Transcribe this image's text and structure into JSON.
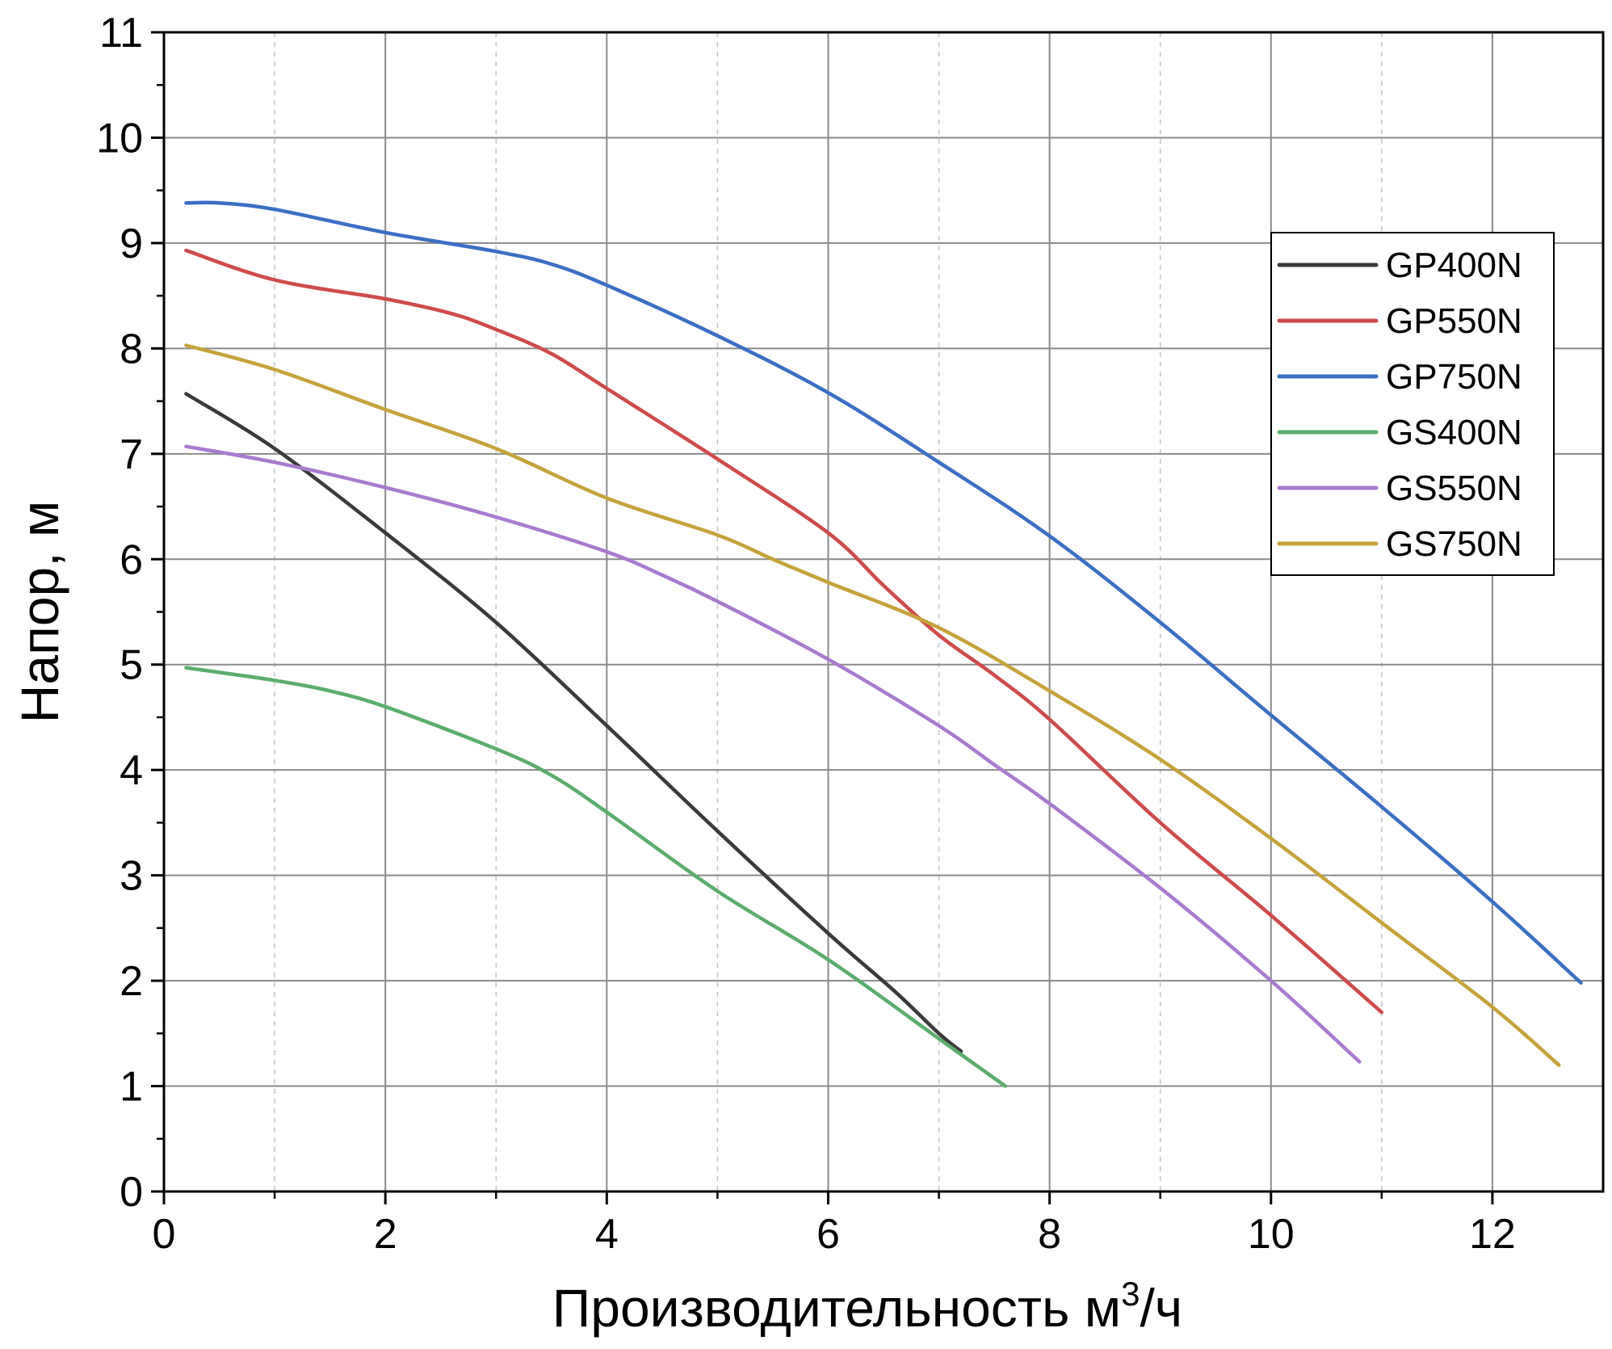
{
  "chart_data": {
    "type": "line",
    "title": "",
    "xlabel": "Производительность м",
    "xlabel_sup": "3",
    "xlabel_tail": "/ч",
    "ylabel": "Напор, м",
    "xlim": [
      0,
      13
    ],
    "ylim": [
      0,
      11
    ],
    "x_ticks": [
      0,
      2,
      4,
      6,
      8,
      10,
      12
    ],
    "x_tick_labels": [
      "0",
      "2",
      "4",
      "6",
      "8",
      "10",
      "12"
    ],
    "y_ticks": [
      0,
      1,
      2,
      3,
      4,
      5,
      6,
      7,
      8,
      9,
      10,
      11
    ],
    "y_tick_labels": [
      "0",
      "1",
      "2",
      "3",
      "4",
      "5",
      "6",
      "7",
      "8",
      "9",
      "10",
      "11"
    ],
    "x_minor_ticks": [
      1,
      3,
      5,
      7,
      9,
      11
    ],
    "y_minor_ticks": [
      0.5,
      1.5,
      2.5,
      3.5,
      4.5,
      5.5,
      6.5,
      7.5,
      8.5,
      9.5,
      10.5
    ],
    "grid": true,
    "legend_position": "top-right",
    "series": [
      {
        "name": "GP400N",
        "color": "#3a3a3a",
        "points": [
          [
            0.2,
            7.57
          ],
          [
            1,
            7.05
          ],
          [
            2,
            6.25
          ],
          [
            3,
            5.4
          ],
          [
            4,
            4.42
          ],
          [
            5,
            3.42
          ],
          [
            6,
            2.45
          ],
          [
            6.6,
            1.9
          ],
          [
            7,
            1.5
          ],
          [
            7.2,
            1.33
          ]
        ]
      },
      {
        "name": "GP550N",
        "color": "#cf4a4a",
        "points": [
          [
            0.2,
            8.93
          ],
          [
            1,
            8.65
          ],
          [
            2,
            8.47
          ],
          [
            2.6,
            8.33
          ],
          [
            3,
            8.18
          ],
          [
            3.5,
            7.95
          ],
          [
            4,
            7.62
          ],
          [
            5,
            6.95
          ],
          [
            6,
            6.25
          ],
          [
            6.5,
            5.75
          ],
          [
            7,
            5.28
          ],
          [
            7.5,
            4.9
          ],
          [
            8,
            4.48
          ],
          [
            9,
            3.5
          ],
          [
            10,
            2.62
          ],
          [
            11,
            1.7
          ]
        ]
      },
      {
        "name": "GP750N",
        "color": "#3a6fc4",
        "points": [
          [
            0.2,
            9.38
          ],
          [
            0.5,
            9.38
          ],
          [
            1,
            9.32
          ],
          [
            2,
            9.1
          ],
          [
            3,
            8.92
          ],
          [
            3.5,
            8.8
          ],
          [
            4,
            8.6
          ],
          [
            5,
            8.12
          ],
          [
            6,
            7.58
          ],
          [
            7,
            6.92
          ],
          [
            8,
            6.22
          ],
          [
            9,
            5.4
          ],
          [
            10,
            4.52
          ],
          [
            11,
            3.65
          ],
          [
            12,
            2.75
          ],
          [
            12.8,
            1.98
          ]
        ]
      },
      {
        "name": "GS400N",
        "color": "#5aad6b",
        "points": [
          [
            0.2,
            4.97
          ],
          [
            1,
            4.85
          ],
          [
            1.5,
            4.75
          ],
          [
            2,
            4.6
          ],
          [
            3,
            4.2
          ],
          [
            3.5,
            3.95
          ],
          [
            4,
            3.6
          ],
          [
            5,
            2.85
          ],
          [
            6,
            2.2
          ],
          [
            7,
            1.45
          ],
          [
            7.6,
            1.0
          ]
        ]
      },
      {
        "name": "GS550N",
        "color": "#a87ad0",
        "points": [
          [
            0.2,
            7.07
          ],
          [
            1,
            6.92
          ],
          [
            2,
            6.68
          ],
          [
            3,
            6.4
          ],
          [
            4,
            6.07
          ],
          [
            4.5,
            5.85
          ],
          [
            5,
            5.6
          ],
          [
            6,
            5.05
          ],
          [
            7,
            4.42
          ],
          [
            7.5,
            4.05
          ],
          [
            8,
            3.68
          ],
          [
            9,
            2.88
          ],
          [
            10,
            2.0
          ],
          [
            10.8,
            1.23
          ]
        ]
      },
      {
        "name": "GS750N",
        "color": "#c6a23b",
        "points": [
          [
            0.2,
            8.03
          ],
          [
            1,
            7.8
          ],
          [
            2,
            7.42
          ],
          [
            3,
            7.05
          ],
          [
            4,
            6.58
          ],
          [
            5,
            6.23
          ],
          [
            5.5,
            6.0
          ],
          [
            6,
            5.78
          ],
          [
            7,
            5.35
          ],
          [
            8,
            4.75
          ],
          [
            9,
            4.1
          ],
          [
            10,
            3.35
          ],
          [
            11,
            2.55
          ],
          [
            12,
            1.75
          ],
          [
            12.6,
            1.2
          ]
        ]
      }
    ]
  }
}
